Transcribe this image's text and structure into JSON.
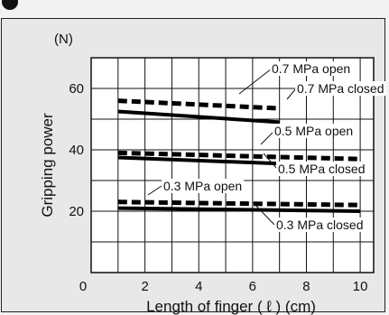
{
  "header": {
    "icon": "circle-bullet-icon",
    "title_fragment": ""
  },
  "chart_data": {
    "type": "line",
    "title": "",
    "xlabel": "Length of finger ( ℓ ) (cm)",
    "ylabel": "Gripping power",
    "yunit": "(N)",
    "xlim": [
      0,
      10.5
    ],
    "ylim": [
      0,
      70
    ],
    "xticks": [
      0,
      2,
      4,
      6,
      8,
      10
    ],
    "yticks": [
      20,
      40,
      60
    ],
    "grid": true,
    "series": [
      {
        "name": "0.7 MPa open",
        "style": "dashed",
        "x": [
          1,
          7
        ],
        "y": [
          56,
          53.5
        ]
      },
      {
        "name": "0.7 MPa closed",
        "style": "solid",
        "x": [
          1,
          7
        ],
        "y": [
          52.5,
          49
        ]
      },
      {
        "name": "0.5 MPa open",
        "style": "dashed",
        "x": [
          1,
          10
        ],
        "y": [
          39,
          37
        ]
      },
      {
        "name": "0.5 MPa closed",
        "style": "solid",
        "x": [
          1,
          10
        ],
        "y": [
          37.5,
          34.5
        ]
      },
      {
        "name": "0.3 MPa open",
        "style": "dashed",
        "x": [
          1,
          10
        ],
        "y": [
          23,
          22
        ]
      },
      {
        "name": "0.3 MPa closed",
        "style": "solid",
        "x": [
          1,
          10
        ],
        "y": [
          21,
          20
        ]
      }
    ]
  }
}
